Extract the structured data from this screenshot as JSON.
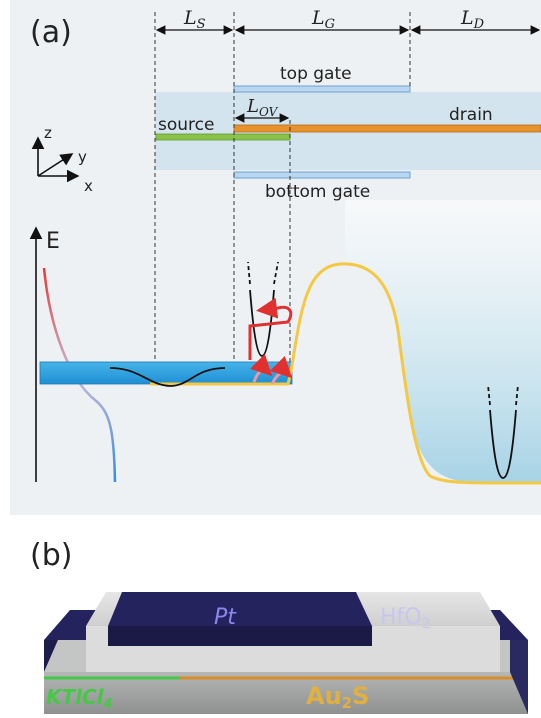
{
  "panel_a": {
    "label": "(a)",
    "dimensions": {
      "ls": "L",
      "ls_sub": "S",
      "lg": "L",
      "lg_sub": "G",
      "ld": "L",
      "ld_sub": "D",
      "lov": "L",
      "lov_sub": "OV"
    },
    "labels": {
      "top_gate": "top gate",
      "bottom_gate": "bottom gate",
      "source": "source",
      "drain": "drain",
      "energy_axis": "E"
    },
    "axes": {
      "z": "z",
      "y": "y",
      "x": "x"
    },
    "colors": {
      "background": "#eef1f3",
      "band": "#d7e7f1",
      "source_layer": "#8ac24a",
      "drain_layer": "#e8922e",
      "gate": "#b8d6f0",
      "band_edge": "#f5c842",
      "reservoir": "#2ea5e0",
      "arrow": "#e03030"
    }
  },
  "panel_b": {
    "label": "(b)",
    "labels": {
      "top_metal": "Pt",
      "dielectric": "HfO",
      "dielectric_sub": "2",
      "source_material": "KTlCl",
      "source_sub": "4",
      "drain_material": "Au",
      "drain_sub": "2",
      "drain_suffix": "S"
    },
    "colors": {
      "metal": "#25235e",
      "dielectric": "#d8d8d8",
      "slab": "#a9abab",
      "source_text": "#46c846",
      "drain_text": "#e0b040"
    }
  }
}
